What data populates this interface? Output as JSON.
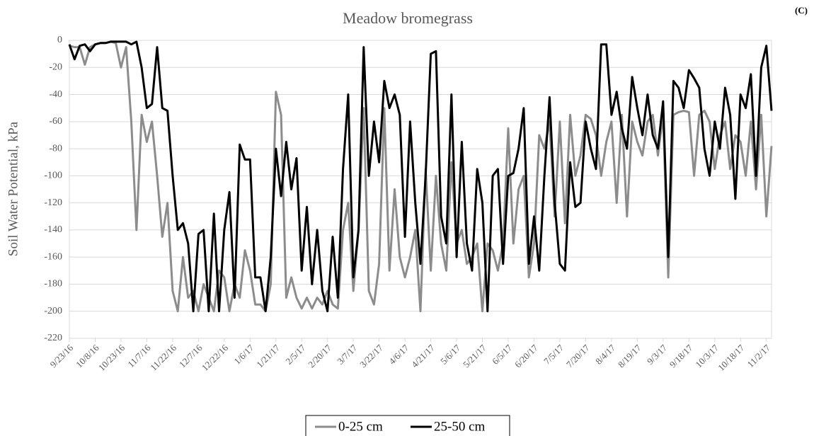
{
  "chart_data": {
    "type": "line",
    "title": "Meadow bromegrass",
    "panel_label": "(C)",
    "y_label": "Soil Water Potential,  kPa",
    "x": [
      "9/23/16",
      "9/26/16",
      "9/29/16",
      "10/2/16",
      "10/5/16",
      "10/8/16",
      "10/11/16",
      "10/14/16",
      "10/17/16",
      "10/20/16",
      "10/23/16",
      "10/26/16",
      "10/29/16",
      "11/1/16",
      "11/4/16",
      "11/7/16",
      "11/10/16",
      "11/13/16",
      "11/16/16",
      "11/19/16",
      "11/22/16",
      "11/25/16",
      "11/28/16",
      "12/1/16",
      "12/4/16",
      "12/7/16",
      "12/10/16",
      "12/13/16",
      "12/16/16",
      "12/19/16",
      "12/22/16",
      "12/25/16",
      "12/28/16",
      "12/31/16",
      "1/3/17",
      "1/6/17",
      "1/9/17",
      "1/12/17",
      "1/15/17",
      "1/18/17",
      "1/21/17",
      "1/24/17",
      "1/27/17",
      "1/30/17",
      "2/2/17",
      "2/5/17",
      "2/8/17",
      "2/11/17",
      "2/14/17",
      "2/17/17",
      "2/20/17",
      "2/23/17",
      "2/26/17",
      "3/1/17",
      "3/4/17",
      "3/7/17",
      "3/10/17",
      "3/13/17",
      "3/16/17",
      "3/19/17",
      "3/22/17",
      "3/25/17",
      "3/28/17",
      "3/31/17",
      "4/3/17",
      "4/6/17",
      "4/9/17",
      "4/12/17",
      "4/15/17",
      "4/18/17",
      "4/21/17",
      "4/24/17",
      "4/27/17",
      "4/30/17",
      "5/3/17",
      "5/6/17",
      "5/9/17",
      "5/12/17",
      "5/15/17",
      "5/18/17",
      "5/21/17",
      "5/24/17",
      "5/27/17",
      "5/30/17",
      "6/2/17",
      "6/5/17",
      "6/8/17",
      "6/11/17",
      "6/14/17",
      "6/17/17",
      "6/20/17",
      "6/23/17",
      "6/26/17",
      "6/29/17",
      "7/2/17",
      "7/5/17",
      "7/8/17",
      "7/11/17",
      "7/14/17",
      "7/17/17",
      "7/20/17",
      "7/23/17",
      "7/26/17",
      "7/29/17",
      "8/1/17",
      "8/4/17",
      "8/7/17",
      "8/10/17",
      "8/13/17",
      "8/16/17",
      "8/19/17",
      "8/22/17",
      "8/25/17",
      "8/28/17",
      "8/31/17",
      "9/3/17",
      "9/6/17",
      "9/9/17",
      "9/12/17",
      "9/15/17",
      "9/18/17",
      "9/21/17",
      "9/24/17",
      "9/27/17",
      "9/30/17",
      "10/3/17",
      "10/6/17",
      "10/9/17",
      "10/12/17",
      "10/15/17",
      "10/18/17",
      "10/21/17",
      "10/24/17",
      "10/27/17",
      "10/30/17",
      "11/2/17",
      "11/5/17"
    ],
    "series": [
      {
        "name": "0-25 cm",
        "color": "#8c8c8c",
        "values": [
          -4,
          -5,
          -5,
          -18,
          -5,
          -3,
          -2,
          -2,
          -1,
          -2,
          -20,
          -5,
          -60,
          -140,
          -55,
          -75,
          -60,
          -100,
          -145,
          -120,
          -185,
          -200,
          -160,
          -190,
          -185,
          -200,
          -180,
          -190,
          -200,
          -170,
          -175,
          -200,
          -180,
          -190,
          -155,
          -170,
          -195,
          -195,
          -200,
          -180,
          -38,
          -55,
          -190,
          -175,
          -190,
          -198,
          -190,
          -198,
          -190,
          -195,
          -185,
          -195,
          -198,
          -140,
          -120,
          -185,
          -140,
          -50,
          -185,
          -195,
          -165,
          -50,
          -170,
          -110,
          -160,
          -175,
          -160,
          -140,
          -200,
          -95,
          -170,
          -100,
          -150,
          -170,
          -90,
          -150,
          -140,
          -165,
          -160,
          -150,
          -200,
          -150,
          -155,
          -170,
          -150,
          -65,
          -150,
          -110,
          -100,
          -175,
          -150,
          -70,
          -80,
          -60,
          -130,
          -60,
          -135,
          -55,
          -100,
          -85,
          -55,
          -58,
          -70,
          -100,
          -75,
          -60,
          -120,
          -55,
          -130,
          -60,
          -75,
          -85,
          -60,
          -55,
          -85,
          -55,
          -175,
          -55,
          -53,
          -52,
          -53,
          -100,
          -55,
          -52,
          -60,
          -95,
          -70,
          -60,
          -95,
          -70,
          -75,
          -100,
          -60,
          -110,
          -55,
          -130,
          -78
        ]
      },
      {
        "name": "25-50 cm",
        "color": "#000000",
        "values": [
          -3,
          -14,
          -4,
          -3,
          -8,
          -3,
          -2,
          -2,
          -1,
          -1,
          -1,
          -1,
          -3,
          -1,
          -20,
          -50,
          -47,
          -5,
          -50,
          -52,
          -100,
          -140,
          -135,
          -150,
          -200,
          -143,
          -140,
          -200,
          -128,
          -200,
          -140,
          -112,
          -190,
          -77,
          -88,
          -88,
          -175,
          -175,
          -200,
          -160,
          -80,
          -115,
          -75,
          -110,
          -87,
          -170,
          -123,
          -180,
          -140,
          -185,
          -200,
          -145,
          -190,
          -95,
          -40,
          -175,
          -140,
          -5,
          -100,
          -60,
          -90,
          -30,
          -50,
          -40,
          -55,
          -145,
          -60,
          -120,
          -165,
          -100,
          -10,
          -8,
          -130,
          -150,
          -40,
          -160,
          -75,
          -150,
          -170,
          -95,
          -120,
          -200,
          -100,
          -95,
          -165,
          -100,
          -98,
          -80,
          -50,
          -165,
          -130,
          -170,
          -100,
          -42,
          -120,
          -165,
          -170,
          -90,
          -123,
          -120,
          -60,
          -80,
          -95,
          -3,
          -3,
          -55,
          -38,
          -65,
          -80,
          -27,
          -50,
          -70,
          -40,
          -70,
          -80,
          -45,
          -160,
          -30,
          -35,
          -50,
          -22,
          -28,
          -35,
          -80,
          -100,
          -60,
          -80,
          -35,
          -55,
          -117,
          -40,
          -50,
          -25,
          -100,
          -20,
          -4,
          -52
        ]
      }
    ],
    "xlim": [
      "9/23/16",
      "11/5/17"
    ],
    "xticks": [
      "9/23/16",
      "10/8/16",
      "10/23/16",
      "11/7/16",
      "11/22/16",
      "12/7/16",
      "12/22/16",
      "1/6/17",
      "1/21/17",
      "2/5/17",
      "2/20/17",
      "3/7/17",
      "3/22/17",
      "4/6/17",
      "4/21/17",
      "5/6/17",
      "5/21/17",
      "6/5/17",
      "6/20/17",
      "7/5/17",
      "7/20/17",
      "8/4/17",
      "8/19/17",
      "9/3/17",
      "9/18/17",
      "10/3/17",
      "10/18/17",
      "11/2/17"
    ],
    "ylim": [
      -220,
      0
    ],
    "yticks": [
      0,
      -20,
      -40,
      -60,
      -80,
      -100,
      -120,
      -140,
      -160,
      -180,
      -200,
      -220
    ],
    "grid": true,
    "legend": "bottom"
  }
}
